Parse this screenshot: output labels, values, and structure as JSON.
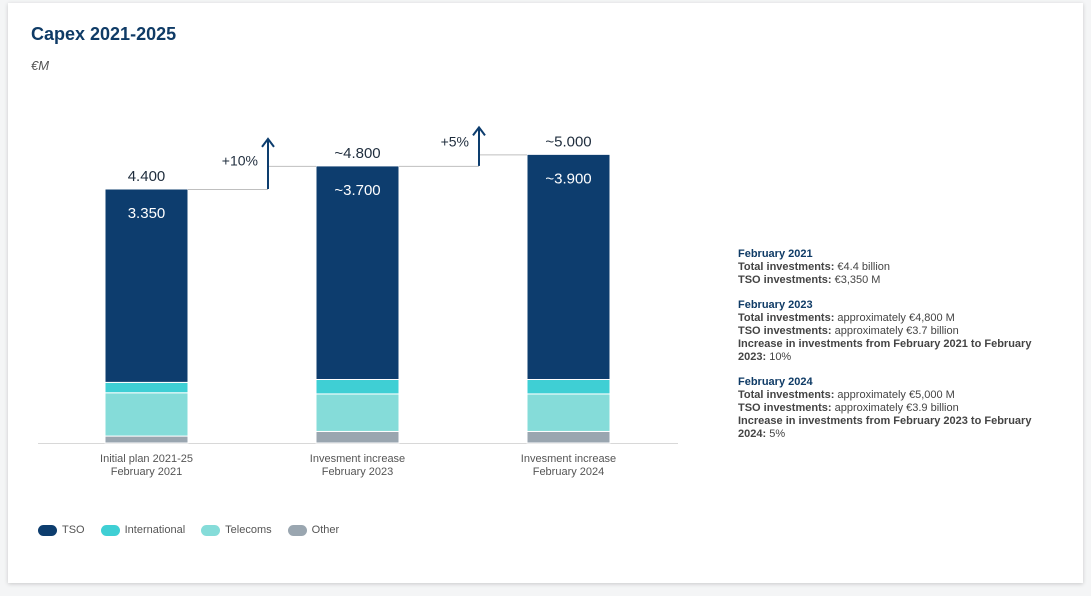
{
  "chart_data": {
    "type": "bar",
    "title": "Capex 2021-2025",
    "unit": "€M",
    "categories": [
      [
        "Initial plan 2021-25",
        "February 2021"
      ],
      [
        "Invesment increase",
        "February 2023"
      ],
      [
        "Invesment increase",
        "February 2024"
      ]
    ],
    "series": [
      {
        "name": "TSO",
        "color": "#0d3d6e",
        "values": [
          3350,
          3700,
          3900
        ]
      },
      {
        "name": "International",
        "color": "#3fcfd4",
        "values": [
          180,
          250,
          250
        ]
      },
      {
        "name": "Telecoms",
        "color": "#85dcd9",
        "values": [
          750,
          650,
          650
        ]
      },
      {
        "name": "Other",
        "color": "#9aa6b0",
        "values": [
          120,
          200,
          200
        ]
      }
    ],
    "total_labels": [
      "4.400",
      "~4.800",
      "~5.000"
    ],
    "tso_labels": [
      "3.350",
      "~3.700",
      "~3.900"
    ],
    "increases": [
      "+10%",
      "+5%"
    ],
    "ylim": [
      0,
      5000
    ],
    "legend_position": "bottom-left"
  },
  "notes": [
    {
      "heading": "February 2021",
      "lines": [
        {
          "label": "Total investments:",
          "value": "€4.4 billion"
        },
        {
          "label": "TSO investments:",
          "value": "€3,350 M"
        }
      ]
    },
    {
      "heading": "February 2023",
      "lines": [
        {
          "label": "Total investments:",
          "value": "approximately €4,800 M"
        },
        {
          "label": "TSO investments:",
          "value": "approximately €3.7 billion"
        },
        {
          "label": "Increase in investments from February 2021 to February 2023:",
          "value": "10%"
        }
      ]
    },
    {
      "heading": "February 2024",
      "lines": [
        {
          "label": "Total investments:",
          "value": "approximately €5,000 M"
        },
        {
          "label": "TSO investments:",
          "value": "approximately €3.9 billion"
        },
        {
          "label": "Increase in investments from February 2023 to February 2024:",
          "value": "5%"
        }
      ]
    }
  ]
}
